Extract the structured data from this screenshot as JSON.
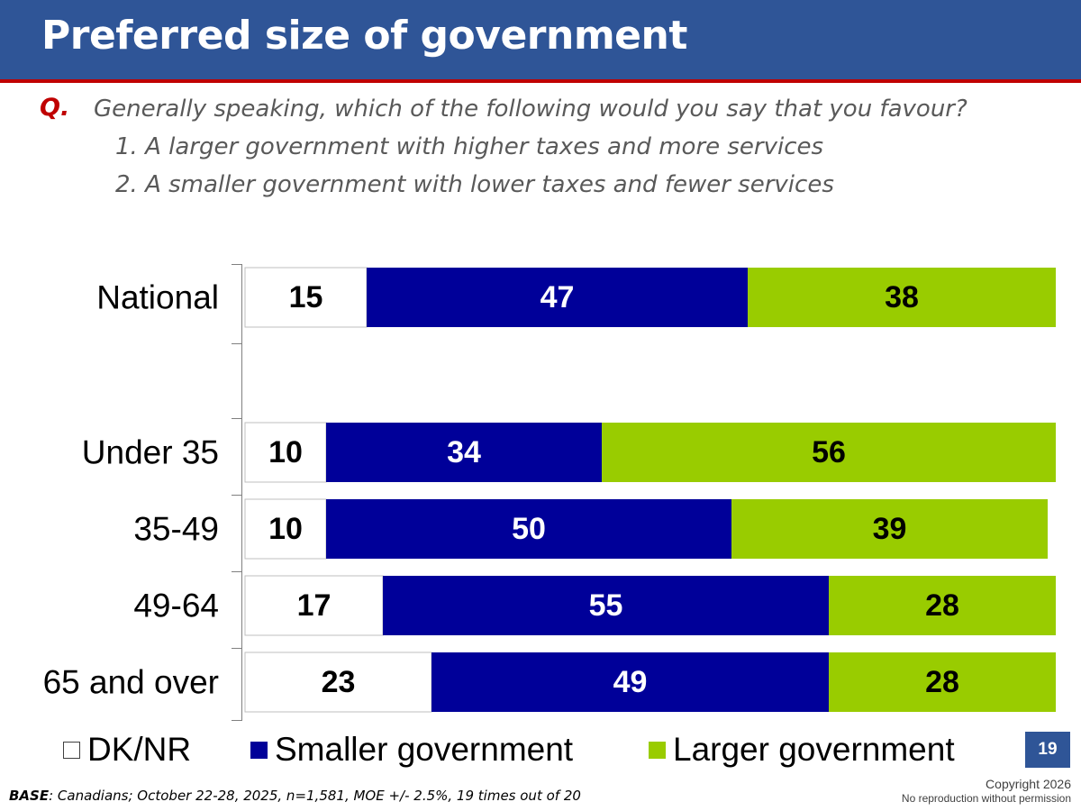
{
  "header": {
    "title": "Preferred size of government"
  },
  "question": {
    "label": "Q.",
    "text": "Generally speaking, which of the following would you say that you favour?",
    "options": [
      "1. A larger government with higher taxes and more services",
      "2. A smaller government with lower taxes and fewer services"
    ]
  },
  "chart_data": {
    "type": "bar",
    "orientation": "horizontal",
    "stacked": true,
    "categories": [
      "National",
      "Under 35",
      "35-49",
      "49-64",
      "65 and over"
    ],
    "series": [
      {
        "name": "DK/NR",
        "color": "#ffffff",
        "values": [
          15,
          10,
          10,
          17,
          23
        ]
      },
      {
        "name": "Smaller government",
        "color": "#000099",
        "values": [
          47,
          34,
          50,
          55,
          49
        ]
      },
      {
        "name": "Larger government",
        "color": "#99cc00",
        "values": [
          38,
          56,
          39,
          28,
          28
        ]
      }
    ],
    "xlim": [
      0,
      100
    ],
    "legend_position": "bottom",
    "grid": false
  },
  "footer": {
    "page_number": "19",
    "base_label": "BASE",
    "base_text": ": Canadians; October 22-28, 2025, n=1,581, MOE +/- 2.5%, 19 times out of 20",
    "copyright": "Copyright 2026",
    "no_repro": "No reproduction without permission"
  }
}
